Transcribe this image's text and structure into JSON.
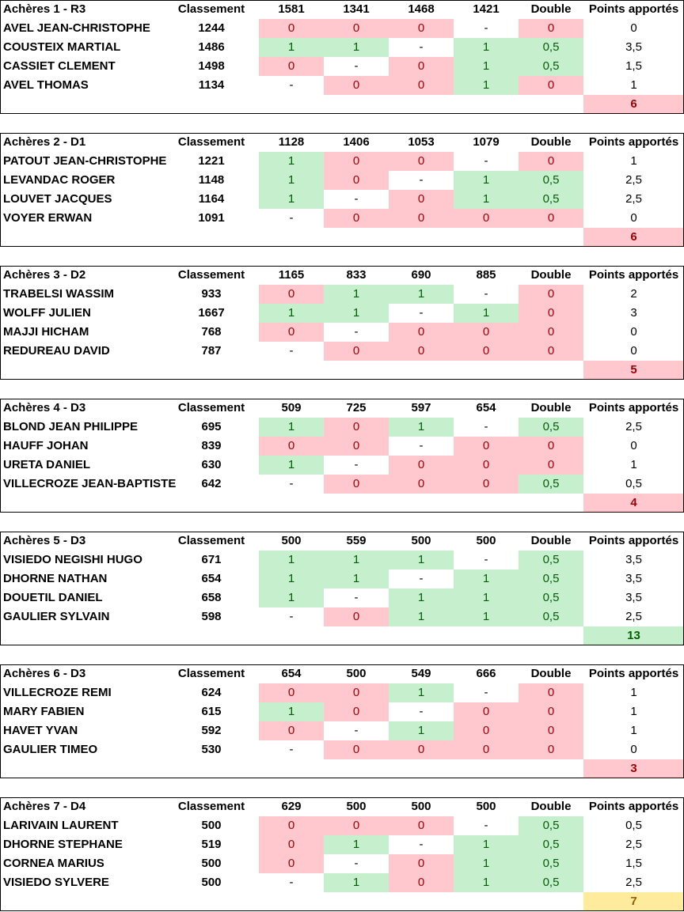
{
  "columns": {
    "classement": "Classement",
    "double": "Double",
    "points": "Points apportés"
  },
  "teams": [
    {
      "title": "Achères 1 - R3",
      "opponents": [
        "1581",
        "1341",
        "1468",
        "1421"
      ],
      "players": [
        {
          "name": "AVEL JEAN-CHRISTOPHE",
          "rank": "1244",
          "results": [
            "0",
            "0",
            "0",
            "-"
          ],
          "double": "0",
          "points": "0"
        },
        {
          "name": "COUSTEIX MARTIAL",
          "rank": "1486",
          "results": [
            "1",
            "1",
            "-",
            "1"
          ],
          "double": "0,5",
          "points": "3,5"
        },
        {
          "name": "CASSIET CLEMENT",
          "rank": "1498",
          "results": [
            "0",
            "-",
            "0",
            "1"
          ],
          "double": "0,5",
          "points": "1,5"
        },
        {
          "name": "AVEL THOMAS",
          "rank": "1134",
          "results": [
            "-",
            "0",
            "0",
            "1"
          ],
          "double": "0",
          "points": "1"
        }
      ],
      "total": "6",
      "total_status": "lose"
    },
    {
      "title": "Achères 2 - D1",
      "opponents": [
        "1128",
        "1406",
        "1053",
        "1079"
      ],
      "players": [
        {
          "name": "PATOUT JEAN-CHRISTOPHE",
          "rank": "1221",
          "results": [
            "1",
            "0",
            "0",
            "-"
          ],
          "double": "0",
          "points": "1"
        },
        {
          "name": "LEVANDAC ROGER",
          "rank": "1148",
          "results": [
            "1",
            "0",
            "-",
            "1"
          ],
          "double": "0,5",
          "points": "2,5"
        },
        {
          "name": "LOUVET JACQUES",
          "rank": "1164",
          "results": [
            "1",
            "-",
            "0",
            "1"
          ],
          "double": "0,5",
          "points": "2,5"
        },
        {
          "name": "VOYER ERWAN",
          "rank": "1091",
          "results": [
            "-",
            "0",
            "0",
            "0"
          ],
          "double": "0",
          "points": "0"
        }
      ],
      "total": "6",
      "total_status": "lose"
    },
    {
      "title": "Achères 3 - D2",
      "opponents": [
        "1165",
        "833",
        "690",
        "885"
      ],
      "players": [
        {
          "name": "TRABELSI WASSIM",
          "rank": "933",
          "results": [
            "0",
            "1",
            "1",
            "-"
          ],
          "double": "0",
          "points": "2"
        },
        {
          "name": "WOLFF JULIEN",
          "rank": "1667",
          "results": [
            "1",
            "1",
            "-",
            "1"
          ],
          "double": "0",
          "points": "3"
        },
        {
          "name": "MAJJI HICHAM",
          "rank": "768",
          "results": [
            "0",
            "-",
            "0",
            "0"
          ],
          "double": "0",
          "points": "0"
        },
        {
          "name": "REDUREAU DAVID",
          "rank": "787",
          "results": [
            "-",
            "0",
            "0",
            "0"
          ],
          "double": "0",
          "points": "0"
        }
      ],
      "total": "5",
      "total_status": "lose"
    },
    {
      "title": "Achères 4 - D3",
      "opponents": [
        "509",
        "725",
        "597",
        "654"
      ],
      "players": [
        {
          "name": "BLOND JEAN PHILIPPE",
          "rank": "695",
          "results": [
            "1",
            "0",
            "1",
            "-"
          ],
          "double": "0,5",
          "points": "2,5"
        },
        {
          "name": "HAUFF JOHAN",
          "rank": "839",
          "results": [
            "0",
            "0",
            "-",
            "0"
          ],
          "double": "0",
          "points": "0"
        },
        {
          "name": "URETA DANIEL",
          "rank": "630",
          "results": [
            "1",
            "-",
            "0",
            "0"
          ],
          "double": "0",
          "points": "1"
        },
        {
          "name": "VILLECROZE JEAN-BAPTISTE",
          "rank": "642",
          "results": [
            "-",
            "0",
            "0",
            "0"
          ],
          "double": "0,5",
          "points": "0,5"
        }
      ],
      "total": "4",
      "total_status": "lose"
    },
    {
      "title": "Achères 5 - D3",
      "opponents": [
        "500",
        "559",
        "500",
        "500"
      ],
      "players": [
        {
          "name": "VISIEDO NEGISHI HUGO",
          "rank": "671",
          "results": [
            "1",
            "1",
            "1",
            "-"
          ],
          "double": "0,5",
          "points": "3,5"
        },
        {
          "name": "DHORNE NATHAN",
          "rank": "654",
          "results": [
            "1",
            "1",
            "-",
            "1"
          ],
          "double": "0,5",
          "points": "3,5"
        },
        {
          "name": "DOUETIL DANIEL",
          "rank": "658",
          "results": [
            "1",
            "-",
            "1",
            "1"
          ],
          "double": "0,5",
          "points": "3,5"
        },
        {
          "name": "GAULIER SYLVAIN",
          "rank": "598",
          "results": [
            "-",
            "0",
            "1",
            "1"
          ],
          "double": "0,5",
          "points": "2,5"
        }
      ],
      "total": "13",
      "total_status": "win"
    },
    {
      "title": "Achères 6 - D3",
      "opponents": [
        "654",
        "500",
        "549",
        "666"
      ],
      "players": [
        {
          "name": "VILLECROZE REMI",
          "rank": "624",
          "results": [
            "0",
            "0",
            "1",
            "-"
          ],
          "double": "0",
          "points": "1"
        },
        {
          "name": "MARY FABIEN",
          "rank": "615",
          "results": [
            "1",
            "0",
            "-",
            "0"
          ],
          "double": "0",
          "points": "1"
        },
        {
          "name": "HAVET YVAN",
          "rank": "592",
          "results": [
            "0",
            "-",
            "1",
            "0"
          ],
          "double": "0",
          "points": "1"
        },
        {
          "name": "GAULIER TIMEO",
          "rank": "530",
          "results": [
            "-",
            "0",
            "0",
            "0"
          ],
          "double": "0",
          "points": "0"
        }
      ],
      "total": "3",
      "total_status": "lose"
    },
    {
      "title": "Achères 7 - D4",
      "opponents": [
        "629",
        "500",
        "500",
        "500"
      ],
      "players": [
        {
          "name": "LARIVAIN LAURENT",
          "rank": "500",
          "results": [
            "0",
            "0",
            "0",
            "-"
          ],
          "double": "0,5",
          "points": "0,5"
        },
        {
          "name": "DHORNE STEPHANE",
          "rank": "519",
          "results": [
            "0",
            "1",
            "-",
            "1"
          ],
          "double": "0,5",
          "points": "2,5"
        },
        {
          "name": "CORNEA MARIUS",
          "rank": "500",
          "results": [
            "0",
            "-",
            "0",
            "1"
          ],
          "double": "0,5",
          "points": "1,5"
        },
        {
          "name": "VISIEDO SYLVERE",
          "rank": "500",
          "results": [
            "-",
            "1",
            "0",
            "1"
          ],
          "double": "0,5",
          "points": "2,5"
        }
      ],
      "total": "7",
      "total_status": "neutral"
    }
  ]
}
